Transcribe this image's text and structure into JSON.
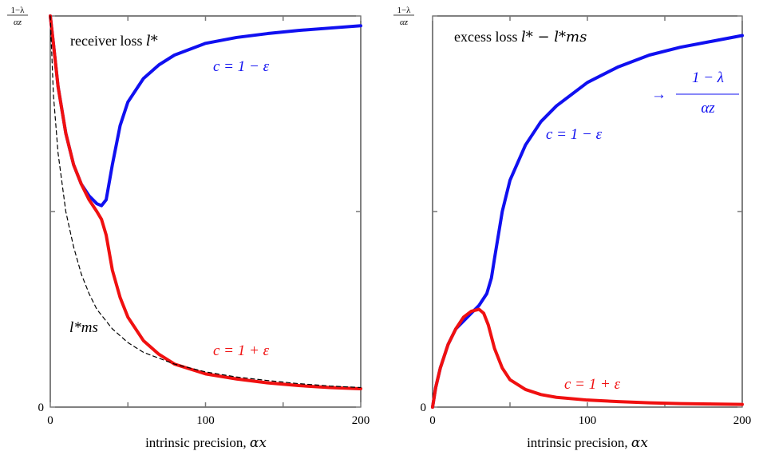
{
  "colors": {
    "blue": "#1010f0",
    "red": "#f01010",
    "black": "#000000"
  },
  "chart_data": [
    {
      "type": "line",
      "title": "receiver loss l*",
      "title_text": "receiver loss ",
      "title_math": "l*",
      "xlabel": "intrinsic precision, αx",
      "xlabel_text": "intrinsic precision, ",
      "xlabel_math": "αx",
      "xlim": [
        0,
        200
      ],
      "ylim": [
        0,
        1
      ],
      "xticks": [
        0,
        100,
        200
      ],
      "xtick_labels": [
        "0",
        "100",
        "200"
      ],
      "yticks": [
        0,
        0.5,
        1
      ],
      "ytick_labels": [
        "0",
        "",
        "(1−λ)/αz"
      ],
      "ytop_label_num": "1−λ",
      "ytop_label_den": "αz",
      "series": [
        {
          "name": "c = 1 − ε",
          "color": "#1010f0",
          "style": "solid",
          "x": [
            0,
            2,
            5,
            10,
            15,
            20,
            25,
            30,
            33,
            36,
            40,
            45,
            50,
            60,
            70,
            80,
            100,
            120,
            140,
            160,
            180,
            200
          ],
          "y": [
            1.0,
            0.93,
            0.82,
            0.7,
            0.62,
            0.57,
            0.54,
            0.52,
            0.515,
            0.53,
            0.62,
            0.72,
            0.78,
            0.84,
            0.875,
            0.9,
            0.93,
            0.945,
            0.955,
            0.963,
            0.969,
            0.975
          ]
        },
        {
          "name": "c = 1 + ε",
          "color": "#f01010",
          "style": "solid",
          "x": [
            0,
            2,
            5,
            10,
            15,
            20,
            25,
            30,
            33,
            36,
            40,
            45,
            50,
            60,
            70,
            80,
            100,
            120,
            140,
            160,
            180,
            200
          ],
          "y": [
            1.0,
            0.93,
            0.82,
            0.7,
            0.62,
            0.57,
            0.53,
            0.5,
            0.48,
            0.44,
            0.35,
            0.28,
            0.23,
            0.17,
            0.135,
            0.11,
            0.085,
            0.072,
            0.062,
            0.055,
            0.05,
            0.047
          ]
        },
        {
          "name": "l*ms",
          "color": "#000000",
          "style": "dashed",
          "x": [
            0,
            2,
            5,
            10,
            15,
            20,
            25,
            30,
            40,
            50,
            60,
            80,
            100,
            120,
            140,
            160,
            180,
            200
          ],
          "y": [
            1.0,
            0.8,
            0.65,
            0.5,
            0.41,
            0.34,
            0.29,
            0.25,
            0.2,
            0.165,
            0.14,
            0.11,
            0.09,
            0.077,
            0.068,
            0.06,
            0.054,
            0.05
          ]
        }
      ],
      "annotations": [
        {
          "text": "c = 1 − ε",
          "color": "#1010f0"
        },
        {
          "text": "c = 1 + ε",
          "color": "#f01010"
        },
        {
          "text": "l*ms",
          "color": "#000000"
        }
      ]
    },
    {
      "type": "line",
      "title": "excess loss l* − l*ms",
      "title_text": "excess loss ",
      "title_math": "l* − l*ms",
      "xlabel": "intrinsic precision, αx",
      "xlabel_text": "intrinsic precision, ",
      "xlabel_math": "αx",
      "xlim": [
        0,
        200
      ],
      "ylim": [
        0,
        1
      ],
      "xticks": [
        0,
        100,
        200
      ],
      "xtick_labels": [
        "0",
        "100",
        "200"
      ],
      "yticks": [
        0,
        0.5,
        1
      ],
      "ytick_labels": [
        "0",
        "",
        "(1−λ)/αz"
      ],
      "ytop_label_num": "1−λ",
      "ytop_label_den": "αz",
      "series": [
        {
          "name": "c = 1 − ε",
          "color": "#1010f0",
          "style": "solid",
          "x": [
            0,
            2,
            5,
            10,
            15,
            20,
            25,
            30,
            35,
            38,
            40,
            45,
            50,
            60,
            70,
            80,
            100,
            120,
            140,
            160,
            180,
            200
          ],
          "y": [
            0.0,
            0.05,
            0.1,
            0.16,
            0.2,
            0.22,
            0.24,
            0.26,
            0.29,
            0.33,
            0.38,
            0.5,
            0.58,
            0.67,
            0.73,
            0.77,
            0.83,
            0.87,
            0.9,
            0.92,
            0.935,
            0.95
          ]
        },
        {
          "name": "c = 1 + ε",
          "color": "#f01010",
          "style": "solid",
          "x": [
            0,
            2,
            5,
            10,
            15,
            20,
            25,
            30,
            33,
            36,
            40,
            45,
            50,
            60,
            70,
            80,
            100,
            120,
            140,
            160,
            180,
            200
          ],
          "y": [
            0.0,
            0.05,
            0.1,
            0.16,
            0.2,
            0.23,
            0.245,
            0.25,
            0.24,
            0.21,
            0.15,
            0.1,
            0.07,
            0.045,
            0.032,
            0.025,
            0.018,
            0.014,
            0.011,
            0.009,
            0.008,
            0.007
          ]
        }
      ],
      "annotations": [
        {
          "text": "→ (1 − λ)/αz",
          "color": "#1010f0",
          "num": "1 − λ",
          "den": "αz"
        },
        {
          "text": "c = 1 − ε",
          "color": "#1010f0"
        },
        {
          "text": "c = 1 + ε",
          "color": "#f01010"
        }
      ]
    }
  ]
}
